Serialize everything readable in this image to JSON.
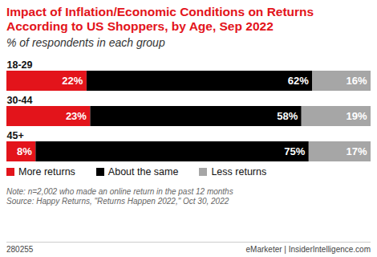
{
  "chart_data": {
    "type": "bar",
    "orientation": "horizontal",
    "stacked": true,
    "data_labels": true,
    "tick_labels": "y",
    "title": "Impact of Inflation/Economic Conditions on Returns According to US Shoppers, by Age, Sep 2022",
    "subtitle": "% of respondents in each group",
    "categories": [
      "18-29",
      "30-44",
      "45+"
    ],
    "xlim": [
      0,
      100
    ],
    "series": [
      {
        "name": "More returns",
        "color": "#e3141b",
        "values": [
          22,
          23,
          8
        ],
        "value_labels": [
          "22%",
          "23%",
          "8%"
        ]
      },
      {
        "name": "About the same",
        "color": "#000000",
        "values": [
          62,
          58,
          75
        ],
        "value_labels": [
          "62%",
          "58%",
          "75%"
        ]
      },
      {
        "name": "Less returns",
        "color": "#a6a6a6",
        "values": [
          16,
          19,
          17
        ],
        "value_labels": [
          "16%",
          "19%",
          "17%"
        ]
      }
    ],
    "notes": [
      "Note: n=2,002 who made an online return in the past 12 months",
      "Source: Happy Returns, \"Returns Happen 2022,\" Oct 30, 2022"
    ],
    "footer": {
      "id": "280255",
      "credit": "eMarketer | InsiderIntelligence.com"
    }
  }
}
